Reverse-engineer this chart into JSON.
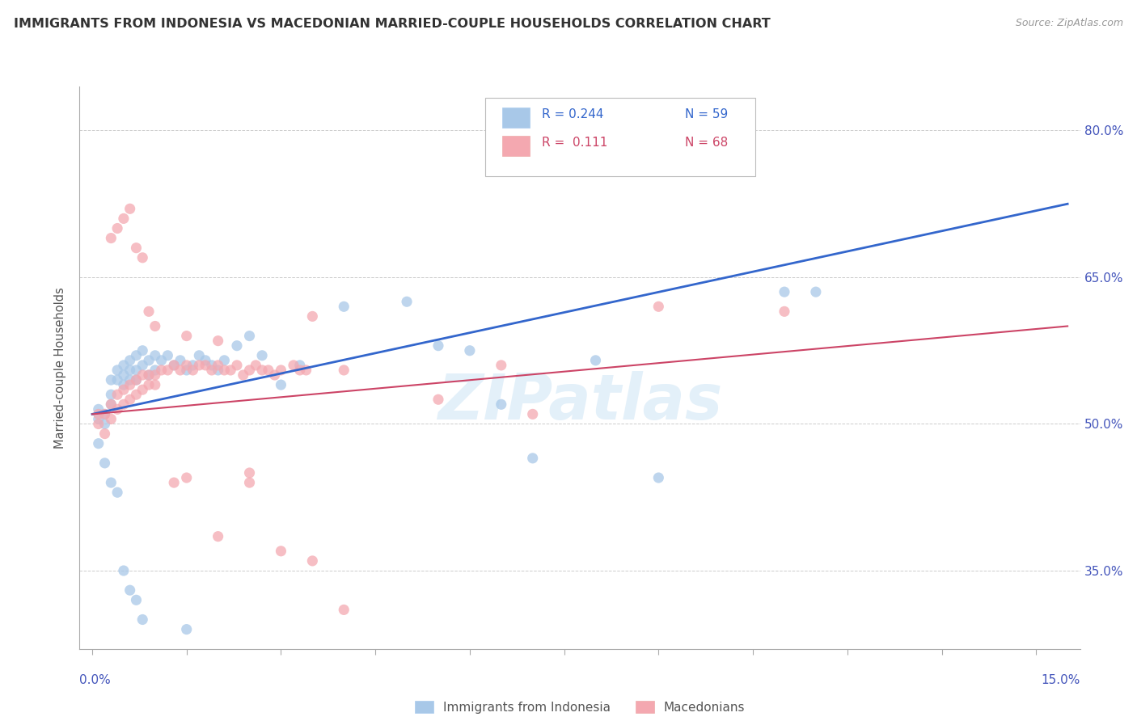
{
  "title": "IMMIGRANTS FROM INDONESIA VS MACEDONIAN MARRIED-COUPLE HOUSEHOLDS CORRELATION CHART",
  "source": "Source: ZipAtlas.com",
  "ylabel": "Married-couple Households",
  "y_ticks": [
    0.35,
    0.5,
    0.65,
    0.8
  ],
  "y_tick_labels": [
    "35.0%",
    "50.0%",
    "65.0%",
    "80.0%"
  ],
  "x_ticks": [
    0.0,
    0.015,
    0.03,
    0.045,
    0.06,
    0.075,
    0.09,
    0.105,
    0.12,
    0.135,
    0.15
  ],
  "xlim": [
    -0.002,
    0.157
  ],
  "ylim": [
    0.27,
    0.845
  ],
  "legend_labels": [
    "Immigrants from Indonesia",
    "Macedonians"
  ],
  "legend_r1": "R = 0.244",
  "legend_n1": "N = 59",
  "legend_r2": "R =  0.111",
  "legend_n2": "N = 68",
  "blue_color": "#a8c8e8",
  "pink_color": "#f4a8b0",
  "blue_line_color": "#3366cc",
  "pink_line_color": "#cc4466",
  "watermark": "ZIPatlas",
  "blue_scatter_x": [
    0.001,
    0.001,
    0.002,
    0.002,
    0.003,
    0.003,
    0.003,
    0.004,
    0.004,
    0.005,
    0.005,
    0.005,
    0.006,
    0.006,
    0.006,
    0.007,
    0.007,
    0.007,
    0.008,
    0.008,
    0.009,
    0.009,
    0.01,
    0.01,
    0.011,
    0.012,
    0.013,
    0.014,
    0.015,
    0.016,
    0.017,
    0.018,
    0.019,
    0.02,
    0.021,
    0.023,
    0.025,
    0.027,
    0.03,
    0.033,
    0.04,
    0.05,
    0.055,
    0.06,
    0.065,
    0.07,
    0.08,
    0.09,
    0.11,
    0.115,
    0.001,
    0.002,
    0.003,
    0.004,
    0.005,
    0.006,
    0.007,
    0.008,
    0.015
  ],
  "blue_scatter_y": [
    0.515,
    0.505,
    0.51,
    0.5,
    0.545,
    0.53,
    0.52,
    0.555,
    0.545,
    0.56,
    0.55,
    0.54,
    0.565,
    0.555,
    0.545,
    0.57,
    0.555,
    0.545,
    0.575,
    0.56,
    0.565,
    0.55,
    0.57,
    0.555,
    0.565,
    0.57,
    0.56,
    0.565,
    0.555,
    0.56,
    0.57,
    0.565,
    0.56,
    0.555,
    0.565,
    0.58,
    0.59,
    0.57,
    0.54,
    0.56,
    0.62,
    0.625,
    0.58,
    0.575,
    0.52,
    0.465,
    0.565,
    0.445,
    0.635,
    0.635,
    0.48,
    0.46,
    0.44,
    0.43,
    0.35,
    0.33,
    0.32,
    0.3,
    0.29
  ],
  "pink_scatter_x": [
    0.001,
    0.001,
    0.002,
    0.002,
    0.003,
    0.003,
    0.004,
    0.004,
    0.005,
    0.005,
    0.006,
    0.006,
    0.007,
    0.007,
    0.008,
    0.008,
    0.009,
    0.009,
    0.01,
    0.01,
    0.011,
    0.012,
    0.013,
    0.014,
    0.015,
    0.016,
    0.017,
    0.018,
    0.019,
    0.02,
    0.021,
    0.022,
    0.023,
    0.024,
    0.025,
    0.026,
    0.027,
    0.028,
    0.029,
    0.03,
    0.032,
    0.033,
    0.034,
    0.035,
    0.04,
    0.055,
    0.065,
    0.07,
    0.09,
    0.11,
    0.003,
    0.004,
    0.005,
    0.006,
    0.007,
    0.008,
    0.009,
    0.01,
    0.015,
    0.02,
    0.025,
    0.03,
    0.035,
    0.04,
    0.013,
    0.015,
    0.02,
    0.025
  ],
  "pink_scatter_y": [
    0.51,
    0.5,
    0.51,
    0.49,
    0.52,
    0.505,
    0.53,
    0.515,
    0.535,
    0.52,
    0.54,
    0.525,
    0.545,
    0.53,
    0.55,
    0.535,
    0.55,
    0.54,
    0.55,
    0.54,
    0.555,
    0.555,
    0.56,
    0.555,
    0.56,
    0.555,
    0.56,
    0.56,
    0.555,
    0.56,
    0.555,
    0.555,
    0.56,
    0.55,
    0.555,
    0.56,
    0.555,
    0.555,
    0.55,
    0.555,
    0.56,
    0.555,
    0.555,
    0.61,
    0.555,
    0.525,
    0.56,
    0.51,
    0.62,
    0.615,
    0.69,
    0.7,
    0.71,
    0.72,
    0.68,
    0.67,
    0.615,
    0.6,
    0.59,
    0.585,
    0.44,
    0.37,
    0.36,
    0.31,
    0.44,
    0.445,
    0.385,
    0.45
  ],
  "blue_trend_x": [
    0.0,
    0.155
  ],
  "blue_trend_y": [
    0.51,
    0.725
  ],
  "pink_trend_x": [
    0.0,
    0.155
  ],
  "pink_trend_y": [
    0.51,
    0.6
  ]
}
